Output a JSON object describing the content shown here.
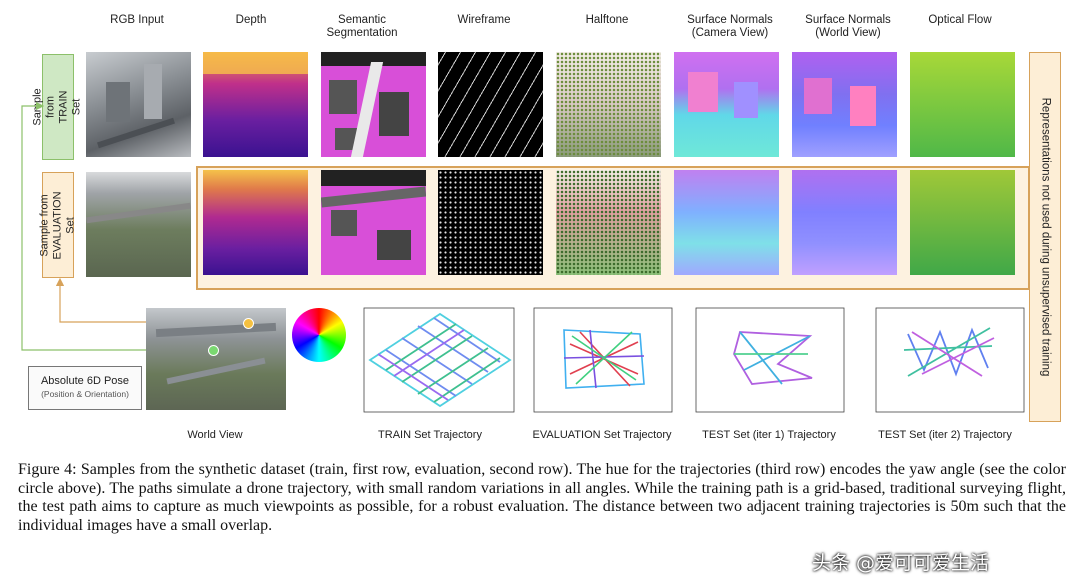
{
  "columns": [
    "RGB Input",
    "Depth",
    "Semantic Segmentation",
    "Wireframe",
    "Halftone",
    "Surface Normals (Camera View)",
    "Surface Normals (World View)",
    "Optical Flow"
  ],
  "rows": {
    "train": "Sample from TRAIN Set",
    "eval": "Sample from EVALUATION Set"
  },
  "side_label": "Representations not used during unsupervised training",
  "pose_box": {
    "line1": "Absolute 6D Pose",
    "line2": "(Position & Orientation)"
  },
  "bottom_labels": {
    "world": "World View",
    "train": "TRAIN Set Trajectory",
    "eval": "EVALUATION Set Trajectory",
    "test1": "TEST Set (iter 1) Trajectory",
    "test2": "TEST Set (iter 2) Trajectory"
  },
  "caption": "Figure 4: Samples from the synthetic dataset (train, first row, evaluation, second row). The hue for the trajectories (third row) encodes the yaw angle (see the color circle above). The paths simulate a drone trajectory, with small random variations in all angles. While the training path is a grid-based, traditional surveying flight, the test path aims to capture as much viewpoints as possible, for a robust evaluation. The distance between two adjacent training trajectories is 50m such that the individual images have a small overlap.",
  "watermark": "头条 @爱可可爱生活",
  "colors": {
    "train_box": "#cfe8c4",
    "eval_box": "#fdeed6",
    "eval_border": "#d7a25a",
    "arrow": "#8cc06a"
  }
}
